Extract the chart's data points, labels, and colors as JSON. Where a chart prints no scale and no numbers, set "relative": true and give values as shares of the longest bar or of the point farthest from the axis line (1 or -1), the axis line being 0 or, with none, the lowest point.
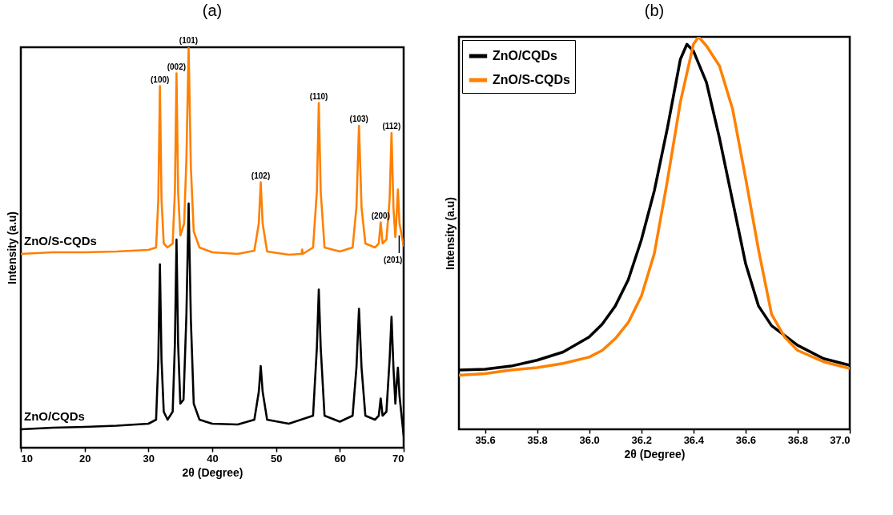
{
  "chart_data": [
    {
      "type": "line",
      "title": "(a)",
      "xlabel": "2θ (Degree)",
      "ylabel": "Intensity (a.u)",
      "relative": true,
      "xlim": [
        10,
        70
      ],
      "xticks": [
        10,
        20,
        30,
        40,
        50,
        60,
        70
      ],
      "tick_labels": "x",
      "legend": false,
      "grid": false,
      "series": [
        {
          "name": "ZnO/CQDs",
          "color": "#000000",
          "x": [
            10,
            15,
            20,
            25,
            30,
            31.2,
            31.55,
            31.8,
            32.05,
            32.4,
            33,
            33.8,
            34.15,
            34.4,
            34.65,
            35,
            35.5,
            35.95,
            36.3,
            36.65,
            37.1,
            38,
            40,
            44,
            46.6,
            47.3,
            47.6,
            47.9,
            48.6,
            52,
            55.8,
            56.4,
            56.7,
            57,
            57.6,
            60,
            62,
            62.6,
            63,
            63.4,
            64,
            65.5,
            66.1,
            66.4,
            66.7,
            67.3,
            67.8,
            68.1,
            68.4,
            68.7,
            68.9,
            69.1,
            69.35,
            70
          ],
          "values": [
            0.046,
            0.05,
            0.052,
            0.055,
            0.06,
            0.07,
            0.22,
            0.458,
            0.22,
            0.09,
            0.07,
            0.09,
            0.26,
            0.52,
            0.26,
            0.11,
            0.12,
            0.33,
            0.61,
            0.32,
            0.11,
            0.07,
            0.06,
            0.058,
            0.07,
            0.14,
            0.204,
            0.14,
            0.07,
            0.06,
            0.08,
            0.25,
            0.395,
            0.25,
            0.08,
            0.065,
            0.08,
            0.2,
            0.347,
            0.2,
            0.08,
            0.07,
            0.08,
            0.123,
            0.08,
            0.09,
            0.22,
            0.327,
            0.2,
            0.11,
            0.16,
            0.2,
            0.13,
            0.03
          ]
        },
        {
          "name": "ZnO/S-CQDs",
          "color": "#ff8000",
          "x": [
            10,
            15,
            20,
            25,
            30,
            31.2,
            31.55,
            31.8,
            32.05,
            32.4,
            33,
            33.8,
            34.15,
            34.4,
            34.65,
            35,
            35.6,
            35.95,
            36.3,
            36.65,
            37.1,
            38,
            40,
            44,
            46.6,
            47.3,
            47.6,
            47.9,
            48.6,
            52,
            54,
            54.1,
            54.2,
            55.8,
            56.4,
            56.7,
            57,
            57.6,
            60,
            62,
            62.6,
            63,
            63.4,
            64,
            65.5,
            66.1,
            66.4,
            66.7,
            67.3,
            67.8,
            68.1,
            68.4,
            68.7,
            68.9,
            69.1,
            69.35,
            70
          ],
          "values": [
            0.484,
            0.488,
            0.488,
            0.49,
            0.494,
            0.5,
            0.62,
            0.903,
            0.62,
            0.51,
            0.5,
            0.51,
            0.64,
            0.935,
            0.64,
            0.53,
            0.56,
            0.72,
            1,
            0.7,
            0.54,
            0.5,
            0.488,
            0.484,
            0.492,
            0.56,
            0.663,
            0.56,
            0.49,
            0.482,
            0.484,
            0.495,
            0.484,
            0.5,
            0.64,
            0.861,
            0.64,
            0.5,
            0.49,
            0.5,
            0.6,
            0.804,
            0.6,
            0.51,
            0.5,
            0.51,
            0.563,
            0.51,
            0.52,
            0.62,
            0.786,
            0.6,
            0.526,
            0.58,
            0.645,
            0.56,
            0.504
          ]
        }
      ],
      "annotations": [
        {
          "text": "(100)",
          "x": 31.8,
          "y": 0.903
        },
        {
          "text": "(002)",
          "x": 34.4,
          "y": 0.935
        },
        {
          "text": "(101)",
          "x": 36.3,
          "y": 1
        },
        {
          "text": "(102)",
          "x": 47.6,
          "y": 0.663
        },
        {
          "text": "(110)",
          "x": 56.7,
          "y": 0.861
        },
        {
          "text": "(103)",
          "x": 63,
          "y": 0.804
        },
        {
          "text": "(200)",
          "x": 66.4,
          "y": 0.563
        },
        {
          "text": "(112)",
          "x": 68.1,
          "y": 0.786
        },
        {
          "text": "(201)",
          "x": 69.3,
          "y": 0.53
        }
      ]
    },
    {
      "type": "line",
      "title": "(b)",
      "xlabel": "2θ (Degree)",
      "ylabel": "Intensity (a.u)",
      "relative": true,
      "xlim": [
        35.5,
        37
      ],
      "xticks": [
        35.6,
        35.8,
        {
          "value": 36,
          "label": "36.0"
        },
        36.2,
        36.4,
        36.6,
        36.8,
        {
          "value": 37,
          "label": "37.0"
        }
      ],
      "tick_labels": "x",
      "legend": "top left",
      "grid": false,
      "series": [
        {
          "name": "ZnO/CQDs",
          "color": "#000000",
          "x": [
            35.5,
            35.6,
            35.7,
            35.8,
            35.9,
            36,
            36.05,
            36.1,
            36.15,
            36.2,
            36.25,
            36.3,
            36.35,
            36.375,
            36.4,
            36.45,
            36.5,
            36.55,
            36.6,
            36.65,
            36.7,
            36.8,
            36.9,
            37
          ],
          "values": [
            0.151,
            0.153,
            0.161,
            0.176,
            0.197,
            0.235,
            0.268,
            0.314,
            0.381,
            0.482,
            0.608,
            0.767,
            0.943,
            0.981,
            0.964,
            0.884,
            0.742,
            0.583,
            0.423,
            0.314,
            0.264,
            0.214,
            0.18,
            0.163
          ]
        },
        {
          "name": "ZnO/S-CQDs",
          "color": "#ff8000",
          "x": [
            35.5,
            35.6,
            35.7,
            35.8,
            35.9,
            36,
            36.05,
            36.1,
            36.15,
            36.2,
            36.25,
            36.3,
            36.35,
            36.4,
            36.42,
            36.45,
            36.5,
            36.55,
            36.6,
            36.65,
            36.7,
            36.75,
            36.8,
            36.9,
            37
          ],
          "values": [
            0.138,
            0.142,
            0.151,
            0.157,
            0.168,
            0.184,
            0.201,
            0.231,
            0.272,
            0.339,
            0.448,
            0.633,
            0.834,
            0.981,
            1,
            0.977,
            0.926,
            0.817,
            0.641,
            0.457,
            0.293,
            0.235,
            0.201,
            0.172,
            0.155
          ]
        }
      ]
    }
  ]
}
